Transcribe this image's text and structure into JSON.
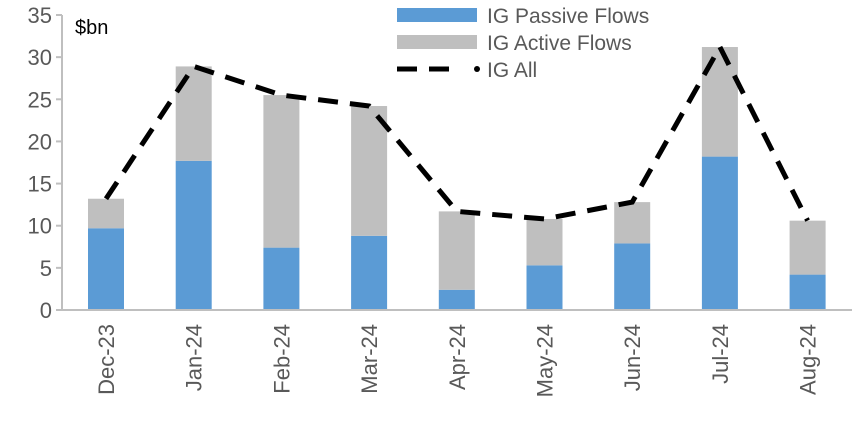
{
  "chart_data": {
    "type": "bar",
    "stacked": true,
    "unit_label": "$bn",
    "categories": [
      "Dec-23",
      "Jan-24",
      "Feb-24",
      "Mar-24",
      "Apr-24",
      "May-24",
      "Jun-24",
      "Jul-24",
      "Aug-24"
    ],
    "series": [
      {
        "name": "IG Passive Flows",
        "type": "bar",
        "color": "#5B9BD5",
        "values": [
          9.7,
          17.7,
          7.4,
          8.8,
          2.4,
          5.3,
          7.9,
          18.2,
          4.2
        ]
      },
      {
        "name": "IG Active Flows",
        "type": "bar",
        "color": "#BFBFBF",
        "values": [
          3.5,
          11.2,
          18.1,
          15.4,
          9.3,
          5.5,
          4.9,
          13.0,
          6.4
        ]
      },
      {
        "name": "IG All",
        "type": "line",
        "style": "dashed",
        "color": "#000000",
        "values": [
          13.2,
          28.9,
          25.5,
          24.2,
          11.7,
          10.8,
          12.8,
          31.2,
          10.6
        ]
      }
    ],
    "ylim": [
      0,
      35
    ],
    "yticks": [
      0,
      5,
      10,
      15,
      20,
      25,
      30,
      35
    ],
    "grid": false,
    "legend": "top-center"
  }
}
